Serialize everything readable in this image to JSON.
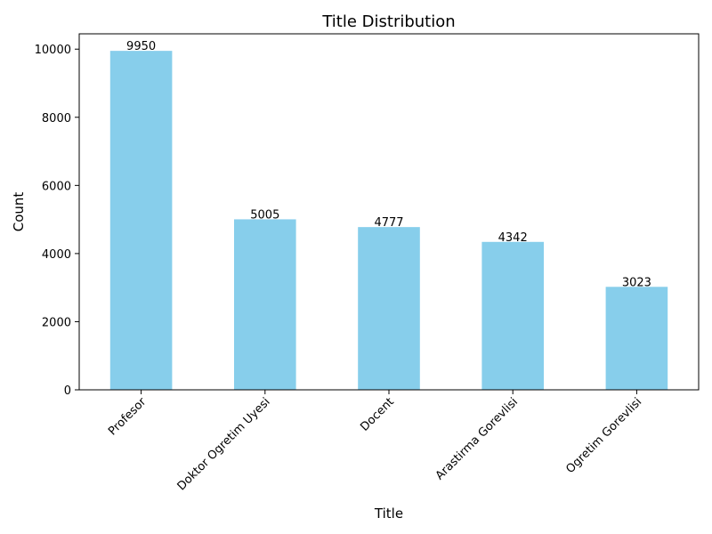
{
  "chart_data": {
    "type": "bar",
    "title": "Title Distribution",
    "xlabel": "Title",
    "ylabel": "Count",
    "categories": [
      "Profesor",
      "Doktor Ogretim Uyesi",
      "Docent",
      "Arastirma Gorevlisi",
      "Ogretim Gorevlisi"
    ],
    "values": [
      9950,
      5005,
      4777,
      4342,
      3023
    ],
    "ylim": [
      0,
      10450
    ],
    "yticks": [
      0,
      2000,
      4000,
      6000,
      8000,
      10000
    ],
    "bar_color": "#87CEEB",
    "grid": false,
    "legend": "none"
  }
}
